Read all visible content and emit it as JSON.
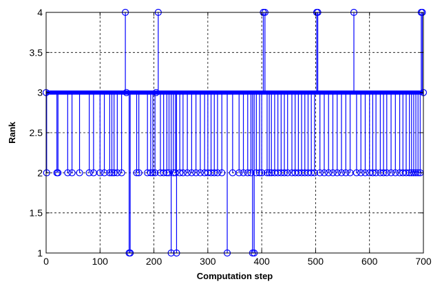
{
  "chart_data": {
    "type": "line",
    "xlabel": "Computation step",
    "ylabel": "Rank",
    "xlim": [
      0,
      700
    ],
    "ylim": [
      1,
      4
    ],
    "x_ticks": [
      0,
      100,
      200,
      300,
      400,
      500,
      600,
      700
    ],
    "y_ticks": [
      1,
      1.5,
      2,
      2.5,
      3,
      3.5,
      4
    ],
    "grid": true,
    "series": [
      {
        "color": "#0000ff",
        "marker": "circle-open",
        "style": "stem-step",
        "baseline": 3,
        "points": [
          [
            0,
            3
          ],
          [
            1,
            2
          ],
          [
            20,
            2
          ],
          [
            22,
            2
          ],
          [
            40,
            2
          ],
          [
            48,
            2
          ],
          [
            62,
            2
          ],
          [
            80,
            2
          ],
          [
            88,
            2
          ],
          [
            100,
            2
          ],
          [
            108,
            2
          ],
          [
            118,
            2
          ],
          [
            122,
            2
          ],
          [
            126,
            2
          ],
          [
            132,
            2
          ],
          [
            140,
            2
          ],
          [
            147,
            4
          ],
          [
            149,
            3
          ],
          [
            154,
            1
          ],
          [
            156,
            1
          ],
          [
            168,
            2
          ],
          [
            172,
            2
          ],
          [
            188,
            2
          ],
          [
            194,
            2
          ],
          [
            198,
            2
          ],
          [
            202,
            2
          ],
          [
            204,
            3
          ],
          [
            208,
            4
          ],
          [
            212,
            2
          ],
          [
            218,
            2
          ],
          [
            224,
            2
          ],
          [
            228,
            2
          ],
          [
            232,
            1
          ],
          [
            236,
            2
          ],
          [
            240,
            2
          ],
          [
            242,
            1
          ],
          [
            248,
            2
          ],
          [
            254,
            2
          ],
          [
            262,
            2
          ],
          [
            270,
            2
          ],
          [
            278,
            2
          ],
          [
            286,
            2
          ],
          [
            294,
            2
          ],
          [
            300,
            2
          ],
          [
            306,
            2
          ],
          [
            312,
            2
          ],
          [
            318,
            2
          ],
          [
            326,
            2
          ],
          [
            336,
            1
          ],
          [
            346,
            2
          ],
          [
            358,
            2
          ],
          [
            366,
            2
          ],
          [
            374,
            2
          ],
          [
            380,
            2
          ],
          [
            383,
            1
          ],
          [
            386,
            1
          ],
          [
            390,
            2
          ],
          [
            396,
            2
          ],
          [
            400,
            2
          ],
          [
            403,
            4
          ],
          [
            406,
            4
          ],
          [
            410,
            2
          ],
          [
            414,
            2
          ],
          [
            418,
            2
          ],
          [
            424,
            2
          ],
          [
            430,
            2
          ],
          [
            436,
            2
          ],
          [
            442,
            2
          ],
          [
            448,
            2
          ],
          [
            456,
            2
          ],
          [
            462,
            2
          ],
          [
            468,
            2
          ],
          [
            474,
            2
          ],
          [
            480,
            2
          ],
          [
            486,
            2
          ],
          [
            492,
            2
          ],
          [
            498,
            2
          ],
          [
            502,
            4
          ],
          [
            504,
            4
          ],
          [
            508,
            2
          ],
          [
            516,
            2
          ],
          [
            524,
            2
          ],
          [
            532,
            2
          ],
          [
            540,
            2
          ],
          [
            548,
            2
          ],
          [
            556,
            2
          ],
          [
            564,
            2
          ],
          [
            571,
            4
          ],
          [
            576,
            2
          ],
          [
            584,
            2
          ],
          [
            592,
            2
          ],
          [
            600,
            2
          ],
          [
            606,
            2
          ],
          [
            612,
            2
          ],
          [
            620,
            2
          ],
          [
            626,
            2
          ],
          [
            632,
            2
          ],
          [
            640,
            2
          ],
          [
            648,
            2
          ],
          [
            656,
            2
          ],
          [
            662,
            2
          ],
          [
            668,
            2
          ],
          [
            674,
            2
          ],
          [
            678,
            2
          ],
          [
            682,
            2
          ],
          [
            686,
            2
          ],
          [
            690,
            2
          ],
          [
            694,
            2
          ],
          [
            696,
            4
          ],
          [
            698,
            4
          ],
          [
            700,
            3
          ]
        ]
      }
    ]
  }
}
